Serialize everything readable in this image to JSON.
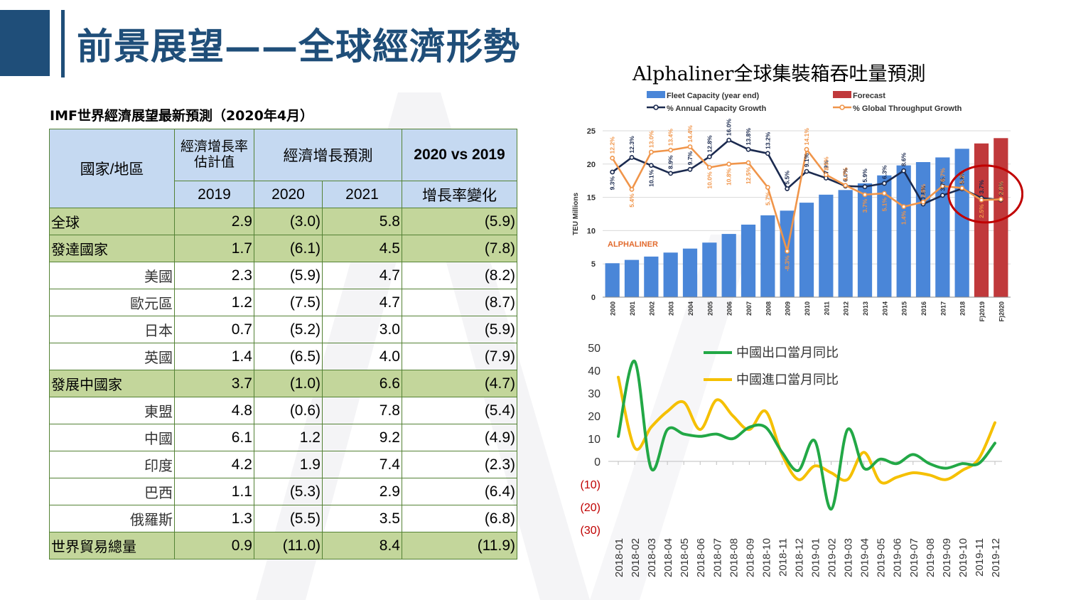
{
  "page_title": "前景展望——全球經濟形勢",
  "table": {
    "caption": "IMF世界經濟展望最新預測（2020年4月）",
    "header": {
      "country": "國家/地區",
      "estimate": "經濟增長率估計值",
      "forecast": "經濟增長預測",
      "vs": "2020 vs 2019",
      "y2019": "2019",
      "y2020": "2020",
      "y2021": "2021",
      "change": "增長率變化"
    },
    "rows": [
      {
        "name": "全球",
        "v2019": "2.9",
        "v2020": "(3.0)",
        "v2021": "5.8",
        "chg": "(5.9)",
        "hl": true
      },
      {
        "name": "發達國家",
        "v2019": "1.7",
        "v2020": "(6.1)",
        "v2021": "4.5",
        "chg": "(7.8)",
        "hl": true
      },
      {
        "name": "美國",
        "v2019": "2.3",
        "v2020": "(5.9)",
        "v2021": "4.7",
        "chg": "(8.2)",
        "hl": false
      },
      {
        "name": "歐元區",
        "v2019": "1.2",
        "v2020": "(7.5)",
        "v2021": "4.7",
        "chg": "(8.7)",
        "hl": false
      },
      {
        "name": "日本",
        "v2019": "0.7",
        "v2020": "(5.2)",
        "v2021": "3.0",
        "chg": "(5.9)",
        "hl": false
      },
      {
        "name": "英國",
        "v2019": "1.4",
        "v2020": "(6.5)",
        "v2021": "4.0",
        "chg": "(7.9)",
        "hl": false
      },
      {
        "name": "發展中國家",
        "v2019": "3.7",
        "v2020": "(1.0)",
        "v2021": "6.6",
        "chg": "(4.7)",
        "hl": true
      },
      {
        "name": "東盟",
        "v2019": "4.8",
        "v2020": "(0.6)",
        "v2021": "7.8",
        "chg": "(5.4)",
        "hl": false
      },
      {
        "name": "中國",
        "v2019": "6.1",
        "v2020": "1.2",
        "v2021": "9.2",
        "chg": "(4.9)",
        "hl": false
      },
      {
        "name": "印度",
        "v2019": "4.2",
        "v2020": "1.9",
        "v2021": "7.4",
        "chg": "(2.3)",
        "hl": false
      },
      {
        "name": "巴西",
        "v2019": "1.1",
        "v2020": "(5.3)",
        "v2021": "2.9",
        "chg": "(6.4)",
        "hl": false
      },
      {
        "name": "俄羅斯",
        "v2019": "1.3",
        "v2020": "(5.5)",
        "v2021": "3.5",
        "chg": "(6.8)",
        "hl": false
      },
      {
        "name": "世界貿易總量",
        "v2019": "0.9",
        "v2020": "(11.0)",
        "v2021": "8.4",
        "chg": "(11.9)",
        "hl": true
      }
    ]
  },
  "colors": {
    "title_blue": "#1f4e79",
    "table_border": "#548235",
    "header_fill": "#c5d9f1",
    "highlight_fill": "#c3d69b",
    "bar_blue": "#4a86d8",
    "bar_forecast": "#c0393b",
    "line_navy": "#1b2a4f",
    "line_orange": "#f0954a",
    "export_green": "#22a846",
    "import_yellow": "#f5c000",
    "negative_red": "#c00000"
  },
  "chart_data": [
    {
      "type": "bar",
      "title": "Alphaliner全球集裝箱吞吐量預測",
      "ylabel": "TEU Millions",
      "watermark": "ALPHALINER",
      "ylim": [
        0,
        25
      ],
      "yticks": [
        "0",
        "5",
        "10",
        "15",
        "20",
        "25"
      ],
      "grid": true,
      "legend_position": "top",
      "categories": [
        "2000",
        "2001",
        "2002",
        "2003",
        "2004",
        "2005",
        "2006",
        "2007",
        "2008",
        "2009",
        "2010",
        "2011",
        "2012",
        "2013",
        "2014",
        "2015",
        "2016",
        "2017",
        "2018",
        "F)2019",
        "F)2020"
      ],
      "series": [
        {
          "name": "Fleet Capacity (year end)",
          "kind": "bar",
          "color": "#4a86d8",
          "values": [
            5.1,
            5.6,
            6.1,
            6.7,
            7.3,
            8.2,
            9.5,
            10.9,
            12.3,
            13.0,
            14.2,
            15.4,
            16.1,
            17.1,
            18.3,
            19.8,
            20.3,
            21.0,
            22.3,
            null,
            null
          ]
        },
        {
          "name": "Forecast",
          "kind": "bar",
          "color": "#c0393b",
          "values": [
            null,
            null,
            null,
            null,
            null,
            null,
            null,
            null,
            null,
            null,
            null,
            null,
            null,
            null,
            null,
            null,
            null,
            null,
            null,
            23.1,
            23.9
          ]
        },
        {
          "name": "% Annual Capacity Growth",
          "kind": "line",
          "color": "#1b2a4f",
          "values": [
            18.8,
            21.0,
            19.8,
            18.6,
            19.2,
            21.1,
            23.6,
            22.2,
            21.6,
            16.3,
            18.9,
            17.9,
            16.7,
            16.6,
            17.1,
            19.0,
            14.0,
            15.3,
            16.3,
            14.9,
            14.6
          ],
          "labels": [
            "9.3%",
            "12.3%",
            "10.1%",
            "8.9%",
            "9.7%",
            "12.8%",
            "16.0%",
            "13.8%",
            "13.2%",
            "5.5%",
            "9.1%",
            "7.9%",
            "6.0%",
            "5.9%",
            "6.3%",
            "8.6%",
            "1.8%",
            "3.7%",
            "5.8%",
            "3.7%",
            "3.3%"
          ]
        },
        {
          "name": "% Global Throughput Growth",
          "kind": "line",
          "color": "#f0954a",
          "values": [
            20.9,
            16.2,
            21.8,
            22.1,
            22.6,
            19.5,
            20.0,
            20.2,
            16.5,
            6.9,
            22.2,
            18.4,
            16.8,
            15.4,
            15.6,
            13.6,
            14.3,
            16.7,
            16.4,
            14.6,
            14.7
          ],
          "labels": [
            "12.2%",
            "5.4%",
            "13.0%",
            "13.4%",
            "14.4%",
            "10.0%",
            "10.8%",
            "12.5%",
            "5.7%",
            "-8.3%",
            "14.1%",
            "8.5%",
            "4.7%",
            "3.7%",
            "5.1%",
            "1.4%",
            "2.8%",
            "6.7%",
            "5.2%",
            "2.5%",
            "2.8%"
          ]
        }
      ]
    },
    {
      "type": "line",
      "ylim": [
        -30,
        50
      ],
      "yticks": [
        "50",
        "40",
        "30",
        "20",
        "10",
        "0",
        "(10)",
        "(20)",
        "(30)"
      ],
      "legend_position": "top-right",
      "categories": [
        "2018-01",
        "2018-02",
        "2018-03",
        "2018-04",
        "2018-05",
        "2018-06",
        "2018-07",
        "2018-08",
        "2018-09",
        "2018-10",
        "2018-11",
        "2018-12",
        "2019-01",
        "2019-02",
        "2019-03",
        "2019-04",
        "2019-05",
        "2019-06",
        "2019-07",
        "2019-08",
        "2019-09",
        "2019-10",
        "2019-11",
        "2019-12"
      ],
      "series": [
        {
          "name": "中國出口當月同比",
          "color": "#22a846",
          "values": [
            11,
            44,
            -3,
            14,
            12,
            11,
            12,
            10,
            15,
            15,
            4,
            -4,
            9,
            -21,
            14,
            -3,
            1,
            -1,
            3,
            -1,
            -3,
            -1,
            -1,
            8
          ]
        },
        {
          "name": "中國進口當月同比",
          "color": "#f5c000",
          "values": [
            37,
            6,
            15,
            22,
            26,
            14,
            27,
            20,
            14,
            22,
            3,
            -8,
            -2,
            -5,
            -8,
            4,
            -9,
            -7,
            -5,
            -6,
            -8,
            -4,
            1,
            17
          ]
        }
      ]
    }
  ]
}
